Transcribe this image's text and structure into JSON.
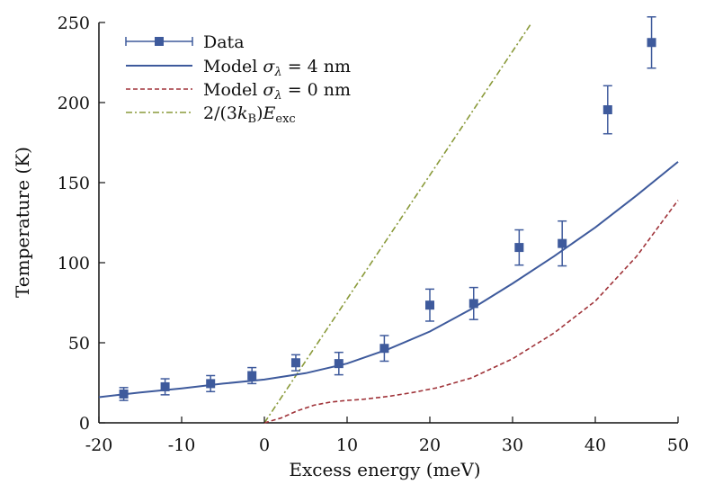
{
  "chart_data": {
    "type": "scatter",
    "title": "",
    "xlabel": "Excess energy (meV)",
    "ylabel": "Temperature (K)",
    "xlim": [
      -20,
      50
    ],
    "ylim": [
      0,
      250
    ],
    "xticks": [
      "-20",
      "-10",
      "0",
      "10",
      "20",
      "30",
      "40",
      "50"
    ],
    "yticks": [
      "0",
      "50",
      "100",
      "150",
      "200",
      "250"
    ],
    "grid": false,
    "legend_position": "top-left",
    "legend": {
      "data": "Data",
      "model_prefix": "Model ",
      "sigma_4": " = 4 nm",
      "sigma_0": " = 0 nm",
      "sigma_symbol": "σ",
      "sigma_sub": "λ",
      "linear_prefix": "2/(3",
      "k_symbol": "k",
      "k_sub": "B",
      "linear_mid": ")",
      "e_symbol": "E",
      "e_sub": "exc"
    },
    "colors": {
      "data": "#3e5a9c",
      "model_4nm": "#3e5a9c",
      "model_0nm": "#a0343a",
      "linear": "#8a9a3a"
    },
    "series": [
      {
        "name": "Data",
        "style": "markers-with-errorbars",
        "points": [
          {
            "x": -17,
            "y": 18,
            "err": 4
          },
          {
            "x": -12,
            "y": 22.5,
            "err": 5
          },
          {
            "x": -6.5,
            "y": 24.5,
            "err": 5
          },
          {
            "x": -1.5,
            "y": 29.5,
            "err": 5
          },
          {
            "x": 3.8,
            "y": 37.5,
            "err": 5
          },
          {
            "x": 9,
            "y": 37,
            "err": 7
          },
          {
            "x": 14.5,
            "y": 46.5,
            "err": 8
          },
          {
            "x": 20,
            "y": 73.5,
            "err": 10
          },
          {
            "x": 25.3,
            "y": 74.5,
            "err": 10
          },
          {
            "x": 30.8,
            "y": 109.5,
            "err": 11
          },
          {
            "x": 36,
            "y": 112,
            "err": 14
          },
          {
            "x": 41.5,
            "y": 195.5,
            "err": 15
          },
          {
            "x": 46.8,
            "y": 237.5,
            "err": 16
          }
        ]
      },
      {
        "name": "Model σλ = 4 nm",
        "style": "solid",
        "x": [
          -20,
          -15,
          -10,
          -5,
          0,
          5,
          10,
          15,
          20,
          25,
          30,
          35,
          40,
          45,
          50
        ],
        "y": [
          16,
          19,
          21.5,
          24.5,
          27,
          31,
          37,
          46,
          57,
          71,
          87,
          104,
          122,
          142,
          163
        ]
      },
      {
        "name": "Model σλ = 0 nm",
        "style": "dashed",
        "x": [
          0,
          2,
          4,
          6,
          8,
          10,
          12,
          15,
          18,
          21,
          25,
          30,
          35,
          40,
          45,
          50
        ],
        "y": [
          0,
          3,
          7.5,
          11,
          13,
          14,
          14.7,
          16.5,
          19,
          22,
          28,
          40,
          56,
          76,
          104,
          139
        ]
      },
      {
        "name": "2/(3kB)Eexc",
        "style": "dashdot",
        "x": [
          0,
          32.2
        ],
        "y": [
          0,
          249
        ]
      }
    ]
  }
}
